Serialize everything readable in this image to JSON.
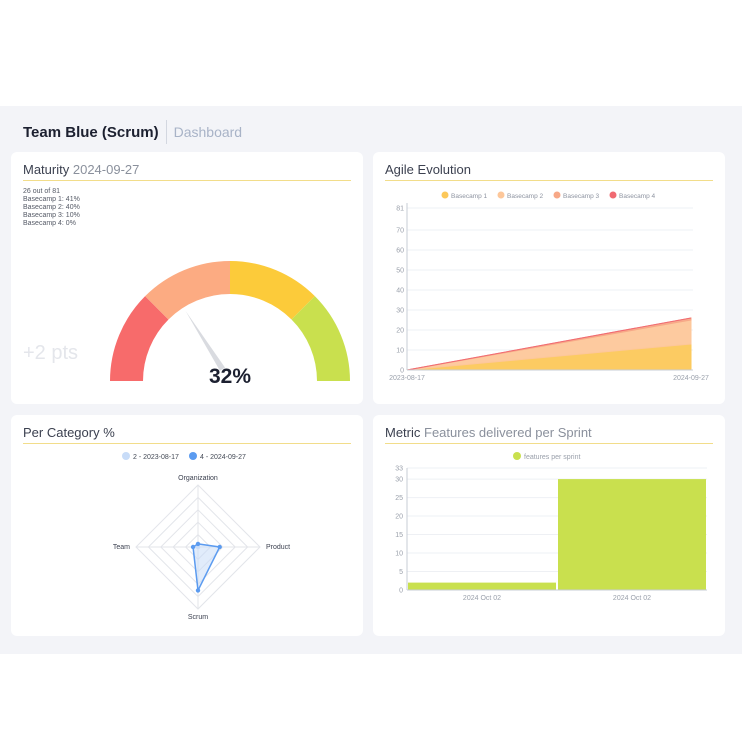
{
  "header": {
    "team": "Team Blue (Scrum)",
    "breadcrumb": "Dashboard"
  },
  "maturity": {
    "title": "Maturity",
    "date": "2024-09-27",
    "summary": "26 out of 81",
    "basecamps": [
      "Basecamp 1: 41%",
      "Basecamp 2: 40%",
      "Basecamp 3: 10%",
      "Basecamp 4: 0%"
    ],
    "delta": "+2 pts",
    "percent_label": "32%",
    "gauge": {
      "value": 32,
      "segment_colors": [
        "#f76b6b",
        "#fcab82",
        "#fccb3a",
        "#c9e04e"
      ],
      "needle_color": "#d9dbe0"
    }
  },
  "agile": {
    "title": "Agile Evolution",
    "legend": [
      "Basecamp 1",
      "Basecamp 2",
      "Basecamp 3",
      "Basecamp 4"
    ],
    "colors": [
      "#fcc85a",
      "#fdc79a",
      "#f7a887",
      "#f06a72"
    ],
    "yticks": [
      "0",
      "10",
      "20",
      "30",
      "40",
      "50",
      "60",
      "70",
      "81"
    ],
    "xticks": [
      "2023-08-17",
      "2024-09-27"
    ]
  },
  "category": {
    "title": "Per Category %",
    "legend": [
      "2 - 2023-08-17",
      "4 - 2024-09-27"
    ],
    "colors": [
      "#c8dcf8",
      "#5b9bf0"
    ],
    "axes": [
      "Organization",
      "Product",
      "Scrum",
      "Team"
    ]
  },
  "metric": {
    "title": "Metric",
    "subtitle": "Features delivered per Sprint",
    "legend": "features per sprint",
    "color": "#c9e04e",
    "yticks": [
      "0",
      "5",
      "10",
      "15",
      "20",
      "25",
      "30",
      "33"
    ],
    "xticks": [
      "2024 Oct 02",
      "2024 Oct 02"
    ]
  },
  "chart_data": [
    {
      "type": "area",
      "title": "Agile Evolution",
      "x": [
        "2023-08-17",
        "2024-09-27"
      ],
      "series": [
        {
          "name": "Basecamp 1",
          "values": [
            0,
            13
          ]
        },
        {
          "name": "Basecamp 2",
          "values": [
            0,
            12
          ]
        },
        {
          "name": "Basecamp 3",
          "values": [
            0,
            1
          ]
        },
        {
          "name": "Basecamp 4",
          "values": [
            0,
            0
          ]
        }
      ],
      "ylim": [
        0,
        81
      ],
      "stacked": true,
      "legend": "top",
      "grid": true
    },
    {
      "type": "radar",
      "title": "Per Category %",
      "axes": [
        "Organization",
        "Product",
        "Scrum",
        "Team"
      ],
      "series": [
        {
          "name": "2 - 2023-08-17",
          "values": [
            0,
            0,
            0,
            0
          ]
        },
        {
          "name": "4 - 2024-09-27",
          "values": [
            0.05,
            0.35,
            0.7,
            0.08
          ]
        }
      ],
      "legend": "top"
    },
    {
      "type": "bar",
      "title": "Metric",
      "categories": [
        "2024 Oct 02",
        "2024 Oct 02"
      ],
      "series": [
        {
          "name": "features per sprint",
          "values": [
            2,
            30
          ]
        }
      ],
      "ylim": [
        0,
        33
      ],
      "legend": "top"
    }
  ]
}
